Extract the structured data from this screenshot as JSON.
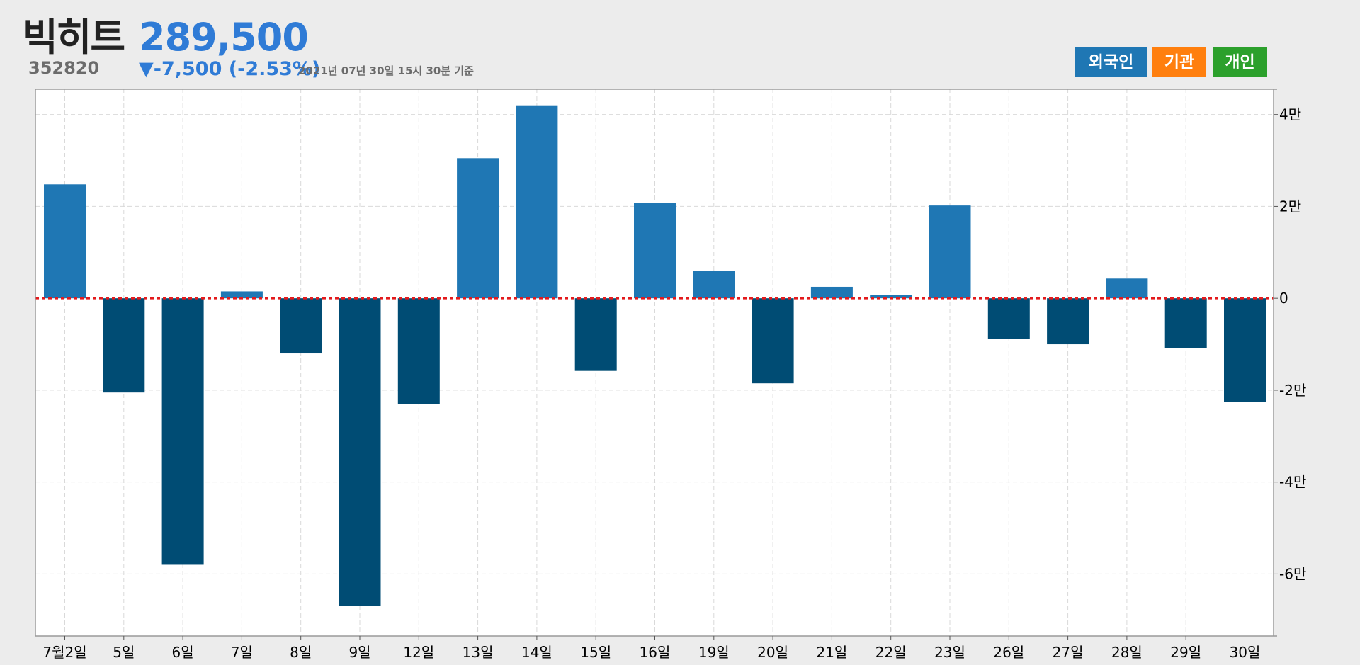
{
  "header": {
    "name": "빅히트",
    "code": "352820",
    "price": "289,500",
    "change": "▼-7,500 (-2.53%)",
    "as_of": "2021년 07년 30일 15시 30분 기준"
  },
  "legend": {
    "items": [
      {
        "label": "외국인",
        "color": "#1f77b4"
      },
      {
        "label": "기관",
        "color": "#ff7f0e"
      },
      {
        "label": "개인",
        "color": "#2ca02c"
      }
    ]
  },
  "colors": {
    "positive": "#1f77b4",
    "negative": "#004c74",
    "zero_line": "#e31a1c",
    "background": "#ececec",
    "plot_background": "#ffffff",
    "price": "#2f7bd6"
  },
  "chart_data": {
    "type": "bar",
    "categories": [
      "7월2일",
      "5일",
      "6일",
      "7일",
      "8일",
      "9일",
      "12일",
      "13일",
      "14일",
      "15일",
      "16일",
      "19일",
      "20일",
      "21일",
      "22일",
      "23일",
      "26일",
      "27일",
      "28일",
      "29일",
      "30일"
    ],
    "series": [
      {
        "values": [
          24800,
          -20500,
          -58000,
          1500,
          -12000,
          -67000,
          -23000,
          30500,
          42000,
          -15800,
          20800,
          6000,
          -18500,
          2500,
          700,
          20200,
          -8800,
          -10000,
          4300,
          -10800,
          -22500
        ]
      }
    ],
    "ylim": [
      -73500,
      45500
    ],
    "yticks": [
      40000,
      20000,
      0,
      -20000,
      -40000,
      -60000
    ],
    "ytick_labels": [
      "4만",
      "2만",
      "0",
      "-2만",
      "-4만",
      "-6만"
    ],
    "grid": true,
    "zero_line": "dotted red",
    "y_axis_side": "right"
  }
}
